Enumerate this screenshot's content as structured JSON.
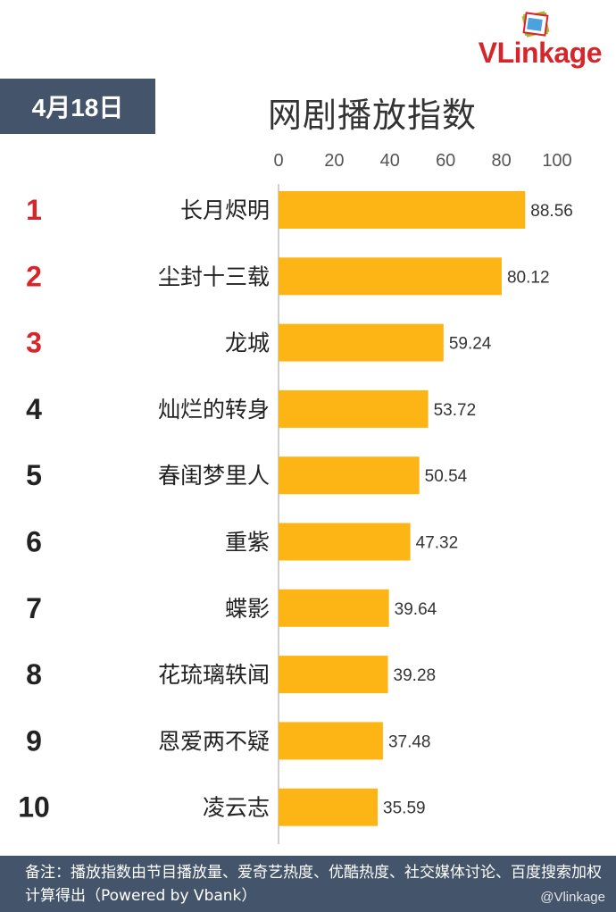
{
  "header": {
    "date": "4月18日",
    "title": "网剧播放指数",
    "logo_text_v": "VL",
    "logo_text_rest": "inkage",
    "brand_color": "#d7262b"
  },
  "footer": {
    "note": "备注：播放指数由节目播放量、爱奇艺热度、优酷热度、社交媒体讨论、百度搜索加权计算得出（Powered by Vbank）",
    "watermark_handle": "@Vlinkage"
  },
  "chart_data": {
    "type": "bar",
    "orientation": "horizontal",
    "title": "网剧播放指数",
    "xlim": [
      0,
      100
    ],
    "xticks": [
      0,
      20,
      40,
      60,
      80,
      100
    ],
    "bar_color": "#fdb515",
    "rank_highlight_color": "#d7262b",
    "ranks": [
      "1",
      "2",
      "3",
      "4",
      "5",
      "6",
      "7",
      "8",
      "9",
      "10"
    ],
    "categories": [
      "长月烬明",
      "尘封十三载",
      "龙城",
      "灿烂的转身",
      "春闺梦里人",
      "重紫",
      "蝶影",
      "花琉璃轶闻",
      "恩爱两不疑",
      "凌云志"
    ],
    "values": [
      88.56,
      80.12,
      59.24,
      53.72,
      50.54,
      47.32,
      39.64,
      39.28,
      37.48,
      35.59
    ],
    "value_labels": [
      "88.56",
      "80.12",
      "59.24",
      "53.72",
      "50.54",
      "47.32",
      "39.64",
      "39.28",
      "37.48",
      "35.59"
    ],
    "grid": false
  }
}
